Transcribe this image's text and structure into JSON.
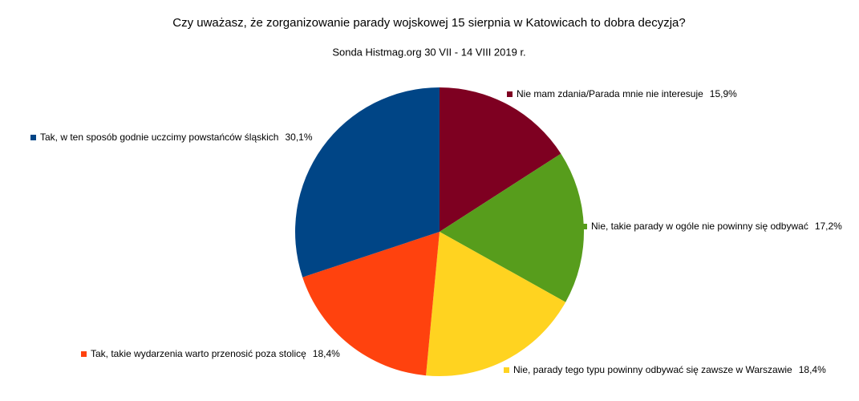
{
  "chart_data": {
    "type": "pie",
    "title": "Czy uważasz, że zorganizowanie parady wojskowej 15 sierpnia w Katowicach to dobra decyzja?",
    "subtitle": "Sonda Histmag.org 30 VII - 14 VIII 2019 r.",
    "categories": [
      "Nie mam zdania/Parada mnie nie interesuje",
      "Nie, takie parady w ogóle nie powinny się odbywać",
      "Nie, parady tego typu powinny odbywać się zawsze w Warszawie",
      "Tak, takie wydarzenia warto przenosić poza stolicę",
      "Tak, w ten sposób godnie uczcimy powstańców śląskich"
    ],
    "values": [
      15.9,
      17.2,
      18.4,
      18.4,
      30.1
    ],
    "value_labels": [
      "15,9%",
      "17,2%",
      "18,4%",
      "18,4%",
      "30,1%"
    ],
    "colors": [
      "#7e0021",
      "#579d1c",
      "#ffd320",
      "#ff420e",
      "#004586"
    ]
  }
}
